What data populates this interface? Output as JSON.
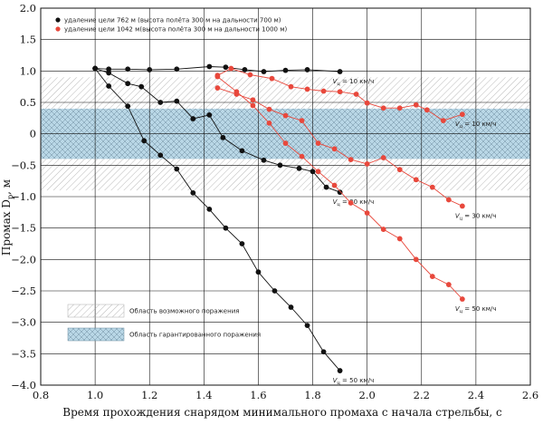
{
  "chart_data": {
    "type": "line",
    "xlabel": "Время прохождения снарядом минимального промаха с начала стрельбы, с",
    "ylabel_main": "Промах D",
    "ylabel_sub": "p",
    "ylabel_unit": ", м",
    "xlim": [
      0.8,
      2.6
    ],
    "ylim": [
      -4.0,
      2.0
    ],
    "xticks": [
      0.8,
      1.0,
      1.2,
      1.4,
      1.6,
      1.8,
      2.0,
      2.2,
      2.4,
      2.6
    ],
    "yticks": [
      2.0,
      1.5,
      1.0,
      0.5,
      0,
      -0.5,
      -1.0,
      -1.5,
      -2.0,
      -2.5,
      -3.0,
      -3.5,
      -4.0
    ],
    "xtick_labels": [
      "0.8",
      "1.0",
      "1.2",
      "1.4",
      "1.6",
      "1.8",
      "2.0",
      "2.2",
      "2.4",
      "2.6"
    ],
    "ytick_labels": [
      "2.0",
      "1.5",
      "1.0",
      "0.5",
      "0",
      "−0.5",
      "−1.0",
      "−1.5",
      "−2.0",
      "−2.5",
      "−3.0",
      "−3.5",
      "−4.0"
    ],
    "grid": true,
    "legend": [
      {
        "label": "удаление цели 762 м (высота полёта 300 м на дальности 700 м)",
        "color": "#111111"
      },
      {
        "label": "удаление цели 1042 м(высота полёта 300 м на дальности 1000 м)",
        "color": "#e8483c"
      }
    ],
    "zones": [
      {
        "label": "Область возможного поражения",
        "y_range": [
          -0.9,
          0.9
        ]
      },
      {
        "label": "Область гарантированного поражения",
        "y_range": [
          -0.4,
          0.4
        ]
      }
    ],
    "series": [
      {
        "group": 0,
        "speed_label": "10 км/ч",
        "x": [
          1.0,
          1.05,
          1.12,
          1.2,
          1.3,
          1.42,
          1.48,
          1.55,
          1.62,
          1.7,
          1.78,
          1.9
        ],
        "y": [
          1.04,
          1.03,
          1.03,
          1.02,
          1.03,
          1.07,
          1.06,
          1.02,
          0.99,
          1.01,
          1.02,
          0.99
        ]
      },
      {
        "group": 0,
        "speed_label": "30 км/ч",
        "x": [
          1.0,
          1.05,
          1.12,
          1.17,
          1.24,
          1.3,
          1.36,
          1.42,
          1.47,
          1.54,
          1.62,
          1.68,
          1.75,
          1.8,
          1.85,
          1.9
        ],
        "y": [
          1.04,
          0.97,
          0.8,
          0.75,
          0.5,
          0.52,
          0.24,
          0.3,
          -0.06,
          -0.27,
          -0.42,
          -0.5,
          -0.55,
          -0.6,
          -0.85,
          -0.93
        ]
      },
      {
        "group": 0,
        "speed_label": "50 км/ч",
        "x": [
          1.0,
          1.05,
          1.12,
          1.18,
          1.24,
          1.3,
          1.36,
          1.42,
          1.48,
          1.54,
          1.6,
          1.66,
          1.72,
          1.78,
          1.84,
          1.9
        ],
        "y": [
          1.04,
          0.76,
          0.44,
          -0.11,
          -0.34,
          -0.56,
          -0.94,
          -1.2,
          -1.5,
          -1.75,
          -2.2,
          -2.5,
          -2.76,
          -3.05,
          -3.47,
          -3.77
        ]
      },
      {
        "group": 1,
        "speed_label": "10 км/ч",
        "x": [
          1.45,
          1.5,
          1.57,
          1.65,
          1.72,
          1.78,
          1.84,
          1.9,
          1.96,
          2.0,
          2.06,
          2.12,
          2.18,
          2.22,
          2.28,
          2.35
        ],
        "y": [
          0.93,
          1.04,
          0.94,
          0.88,
          0.75,
          0.71,
          0.68,
          0.67,
          0.63,
          0.49,
          0.41,
          0.41,
          0.46,
          0.38,
          0.21,
          0.31
        ]
      },
      {
        "group": 1,
        "speed_label": "30 км/ч",
        "x": [
          1.45,
          1.52,
          1.58,
          1.64,
          1.7,
          1.76,
          1.82,
          1.88,
          1.94,
          2.0,
          2.06,
          2.12,
          2.18,
          2.24,
          2.3,
          2.35
        ],
        "y": [
          0.73,
          0.63,
          0.54,
          0.39,
          0.29,
          0.21,
          -0.15,
          -0.24,
          -0.41,
          -0.48,
          -0.38,
          -0.57,
          -0.73,
          -0.85,
          -1.05,
          -1.15
        ]
      },
      {
        "group": 1,
        "speed_label": "50 км/ч",
        "x": [
          1.45,
          1.52,
          1.58,
          1.64,
          1.7,
          1.76,
          1.82,
          1.88,
          1.94,
          2.0,
          2.06,
          2.12,
          2.18,
          2.24,
          2.3,
          2.35
        ],
        "y": [
          0.91,
          0.67,
          0.45,
          0.17,
          -0.15,
          -0.36,
          -0.6,
          -0.82,
          -1.1,
          -1.26,
          -1.52,
          -1.67,
          -2.0,
          -2.27,
          -2.4,
          -2.63
        ]
      }
    ]
  }
}
